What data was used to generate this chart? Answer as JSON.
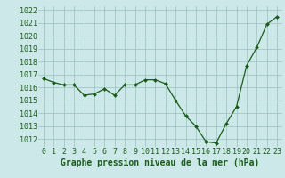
{
  "x": [
    0,
    1,
    2,
    3,
    4,
    5,
    6,
    7,
    8,
    9,
    10,
    11,
    12,
    13,
    14,
    15,
    16,
    17,
    18,
    19,
    20,
    21,
    22,
    23
  ],
  "y": [
    1016.7,
    1016.4,
    1016.2,
    1016.2,
    1015.4,
    1015.5,
    1015.9,
    1015.4,
    1016.2,
    1016.2,
    1016.6,
    1016.6,
    1016.3,
    1015.0,
    1013.8,
    1013.0,
    1011.8,
    1011.7,
    1013.2,
    1014.5,
    1017.7,
    1019.1,
    1020.9,
    1021.5
  ],
  "line_color": "#1a5c1a",
  "marker_color": "#1a5c1a",
  "bg_color": "#cce8e8",
  "grid_color": "#9bbfbf",
  "xlabel": "Graphe pression niveau de la mer (hPa)",
  "xlabel_color": "#1a5c1a",
  "tick_color": "#1a5c1a",
  "ylim": [
    1011.4,
    1022.3
  ],
  "yticks": [
    1012,
    1013,
    1014,
    1015,
    1016,
    1017,
    1018,
    1019,
    1020,
    1021,
    1022
  ],
  "xticks": [
    0,
    1,
    2,
    3,
    4,
    5,
    6,
    7,
    8,
    9,
    10,
    11,
    12,
    13,
    14,
    15,
    16,
    17,
    18,
    19,
    20,
    21,
    22,
    23
  ],
  "tick_fontsize": 6.0,
  "label_fontsize": 7.0
}
